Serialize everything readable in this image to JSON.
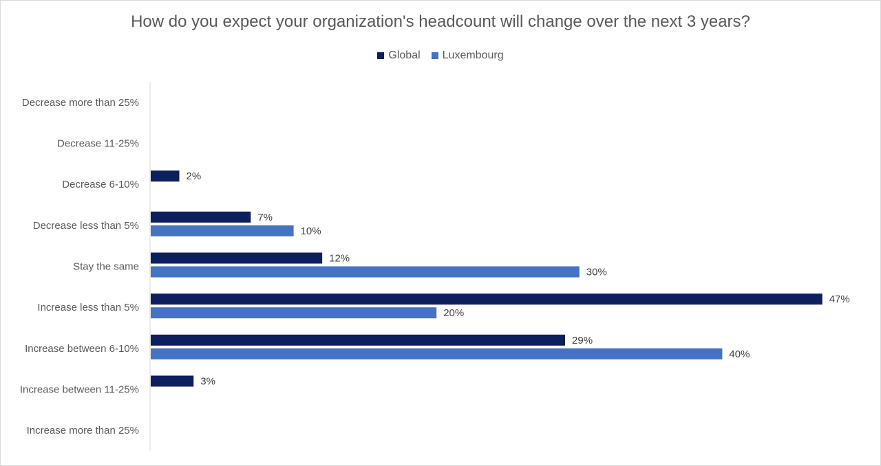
{
  "chart_data": {
    "type": "bar",
    "orientation": "horizontal",
    "title": "How do you expect your organization's headcount will change over the next 3 years?",
    "categories": [
      "Decrease  more than 25%",
      "Decrease 11-25%",
      "Decrease 6-10%",
      "Decrease less than 5%",
      "Stay the same",
      "Increase less than 5%",
      "Increase between 6-10%",
      "Increase between 11-25%",
      "Increase more than 25%"
    ],
    "series": [
      {
        "name": "Global",
        "color": "#0d1f5c",
        "values": [
          null,
          null,
          2,
          7,
          12,
          47,
          29,
          3,
          null
        ]
      },
      {
        "name": "Luxembourg",
        "color": "#4472c4",
        "values": [
          null,
          null,
          null,
          10,
          30,
          20,
          40,
          null,
          null
        ]
      }
    ],
    "value_suffix": "%",
    "xlim": [
      0,
      50
    ],
    "legend_position": "top",
    "grid": false
  }
}
